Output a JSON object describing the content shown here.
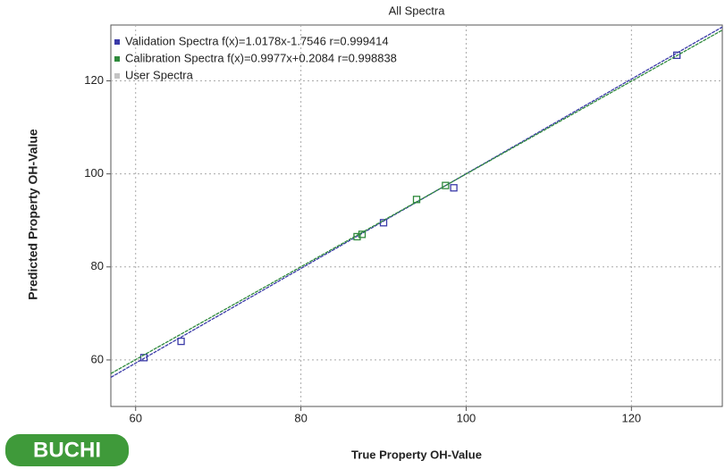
{
  "chart_data": {
    "type": "scatter",
    "title": "All Spectra",
    "x_label": "True Property OH-Value",
    "y_label": "Predicted Property OH-Value",
    "xlim": [
      57,
      131
    ],
    "ylim": [
      50,
      132
    ],
    "xticks": [
      60,
      80,
      100,
      120
    ],
    "yticks": [
      60,
      80,
      100,
      120
    ],
    "grid": true,
    "legend": "upper left",
    "series": [
      {
        "name": "Validation Spectra f(x)=1.0178x-1.7546  r=0.999414",
        "color": "#3a3aa8",
        "fit": [
          1.0178,
          -1.7546
        ],
        "x": [
          61,
          65.5,
          90,
          98.5,
          125.5
        ],
        "values": [
          60.5,
          64,
          89.5,
          97,
          125.5
        ]
      },
      {
        "name": "Calibration Spectra f(x)=0.9977x+0.2084  r=0.998838",
        "color": "#2f8a3c",
        "fit": [
          0.9977,
          0.2084
        ],
        "x": [
          86.8,
          87.4,
          94,
          97.5
        ],
        "values": [
          86.5,
          87,
          94.5,
          97.5
        ]
      },
      {
        "name": "User Spectra",
        "color": "#c4c4c4",
        "x": [],
        "values": []
      }
    ]
  },
  "logo": "BUCHI"
}
